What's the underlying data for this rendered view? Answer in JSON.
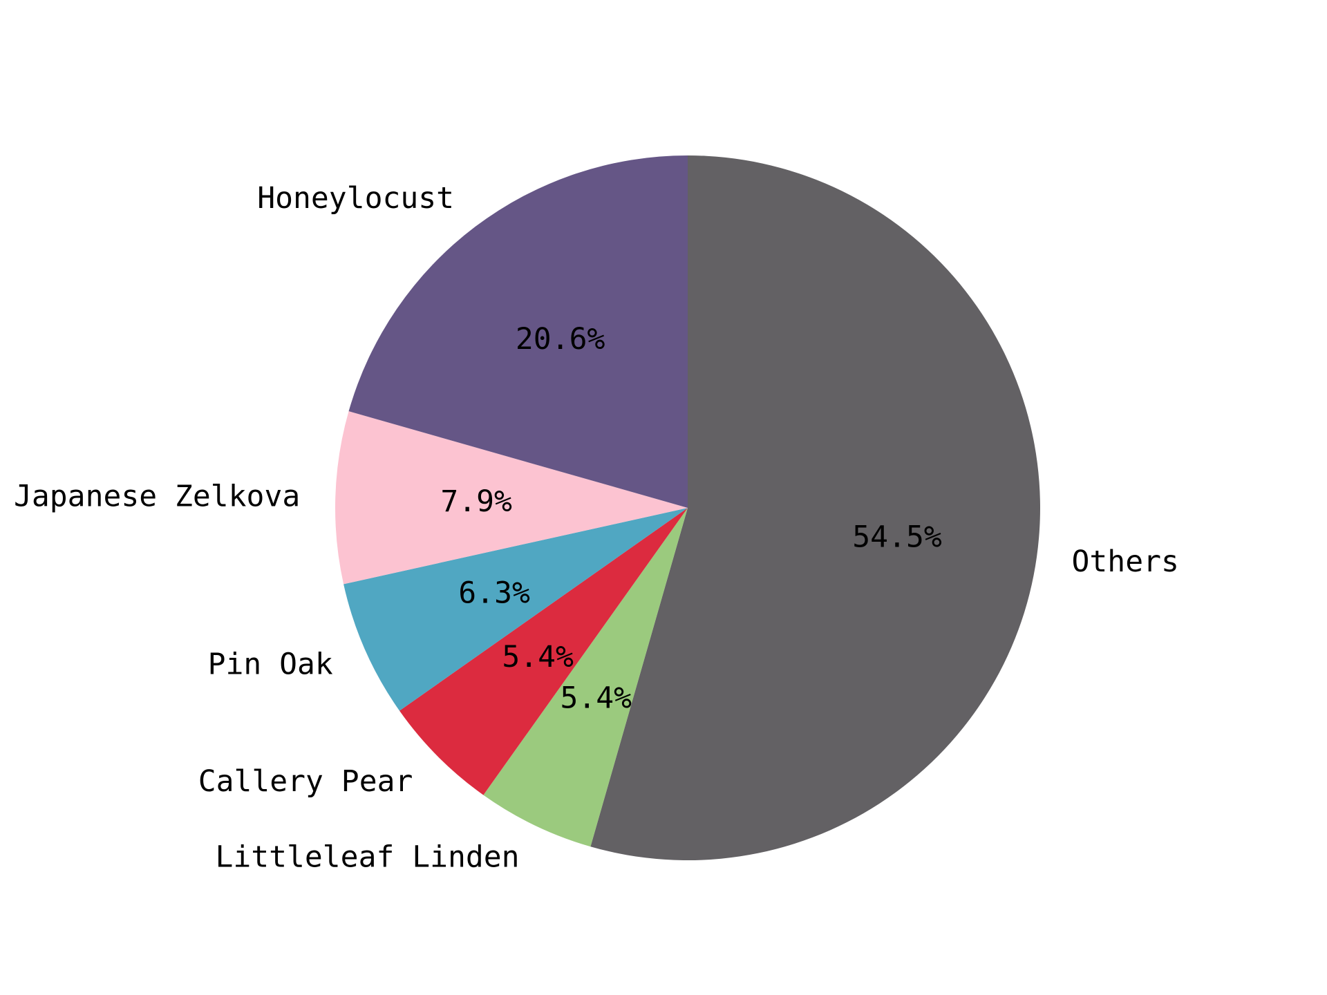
{
  "chart_data": {
    "type": "pie",
    "title": "",
    "slices": [
      {
        "label": "Others",
        "value": 54.5,
        "pct_label": "54.5%",
        "color": "#636164"
      },
      {
        "label": "Littleleaf Linden",
        "value": 5.4,
        "pct_label": "5.4%",
        "color": "#9bca7e"
      },
      {
        "label": "Callery Pear",
        "value": 5.4,
        "pct_label": "5.4%",
        "color": "#dc2b3f"
      },
      {
        "label": "Pin Oak",
        "value": 6.3,
        "pct_label": "6.3%",
        "color": "#50a7c2"
      },
      {
        "label": "Japanese Zelkova",
        "value": 7.9,
        "pct_label": "7.9%",
        "color": "#fcc3d1"
      },
      {
        "label": "Honeylocust",
        "value": 20.6,
        "pct_label": "20.6%",
        "color": "#655686"
      }
    ],
    "start_angle": "top",
    "direction": "clockwise",
    "legend": "none"
  }
}
